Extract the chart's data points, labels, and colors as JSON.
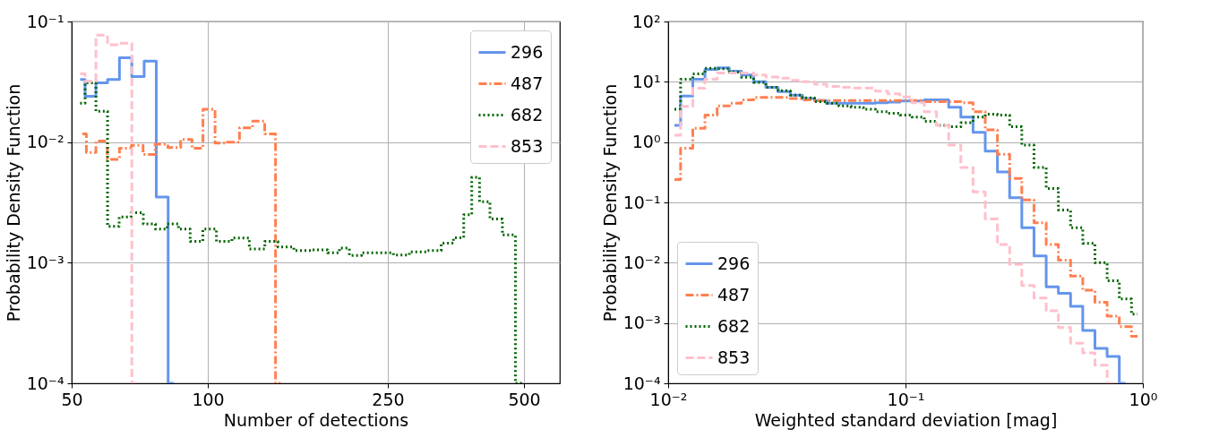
{
  "chart_data": [
    {
      "type": "step",
      "xlabel": "Number of detections",
      "ylabel": "Probability Density Function",
      "log": "xy",
      "grid": true,
      "legend": "top right",
      "xlim": [
        50,
        600
      ],
      "xticks": [
        50,
        100,
        250,
        500
      ],
      "ylim": [
        0.0001,
        0.1
      ],
      "yticks": [
        {
          "value": 0.0001,
          "label": "10⁻⁴"
        },
        {
          "value": 0.001,
          "label": "10⁻³"
        },
        {
          "value": 0.01,
          "label": "10⁻²"
        },
        {
          "value": 0.1,
          "label": "10⁻¹"
        }
      ],
      "series": [
        {
          "name": "296",
          "color": "#6495ed",
          "line_style": "solid",
          "x": [
            52.2,
            54.9,
            58.3,
            61.8,
            65.8,
            70.1,
            74.6,
            79.3,
            84.2
          ],
          "values": [
            0.033,
            0.024,
            0.031,
            0.033,
            0.05,
            0.035,
            0.047,
            0.0035,
            0.0001
          ]
        },
        {
          "name": "487",
          "color": "#ff7f50",
          "line_style": "dashdot",
          "x": [
            52.8,
            55.0,
            58.2,
            61.8,
            65.8,
            69.8,
            74.1,
            78.9,
            84.4,
            89.9,
            94.7,
            100.5,
            107.1,
            113.6,
            121.5,
            129.9,
            137.4,
            145.0
          ],
          "values": [
            0.0117,
            0.0082,
            0.0102,
            0.0072,
            0.0089,
            0.0094,
            0.0079,
            0.0096,
            0.009,
            0.0105,
            0.0089,
            0.0187,
            0.0098,
            0.01,
            0.0131,
            0.0149,
            0.0117,
            0.0001
          ]
        },
        {
          "name": "682",
          "color": "#006400",
          "line_style": "dotted",
          "x": [
            52.2,
            54.9,
            58.3,
            61.8,
            65.6,
            69.8,
            74.3,
            79.0,
            83.7,
            88.6,
            94.3,
            100.8,
            108.3,
            118.0,
            129.3,
            138.2,
            147.7,
            162.6,
            178.1,
            190.3,
            200.7,
            210.5,
            227.2,
            247.6,
            267.2,
            291.2,
            317.3,
            339.2,
            359.3,
            376.7,
            389.9,
            407.8,
            433.6,
            462.9,
            495.0
          ],
          "values": [
            0.021,
            0.031,
            0.018,
            0.002,
            0.0024,
            0.0026,
            0.0021,
            0.0019,
            0.0021,
            0.0019,
            0.0015,
            0.0019,
            0.0015,
            0.0016,
            0.0013,
            0.0015,
            0.00135,
            0.00126,
            0.00128,
            0.00121,
            0.00132,
            0.00115,
            0.00121,
            0.00121,
            0.00116,
            0.00123,
            0.00126,
            0.00145,
            0.00161,
            0.0025,
            0.0051,
            0.0032,
            0.0023,
            0.0017,
            0.0001
          ]
        },
        {
          "name": "853",
          "color": "#ffc0cb",
          "line_style": "dashed",
          "x": [
            52.2,
            54.9,
            58.3,
            61.8,
            65.8,
            70.1
          ],
          "values": [
            0.037,
            0.032,
            0.077,
            0.064,
            0.066,
            0.0001
          ]
        }
      ]
    },
    {
      "type": "step",
      "xlabel": "Weighted standard deviation [mag]",
      "ylabel": "Probability Density Function",
      "log": "xy",
      "grid": true,
      "legend": "bottom left",
      "xlim": [
        0.01,
        1
      ],
      "xticks": [
        {
          "value": 0.01,
          "label": "10⁻²"
        },
        {
          "value": 0.1,
          "label": "10⁻¹"
        },
        {
          "value": 1,
          "label": "10⁰"
        }
      ],
      "ylim": [
        0.0001,
        100
      ],
      "yticks": [
        {
          "value": 0.0001,
          "label": "10⁻⁴"
        },
        {
          "value": 0.001,
          "label": "10⁻³"
        },
        {
          "value": 0.01,
          "label": "10⁻²"
        },
        {
          "value": 0.1,
          "label": "10⁻¹"
        },
        {
          "value": 1,
          "label": "10⁰"
        },
        {
          "value": 10,
          "label": "10¹"
        },
        {
          "value": 100,
          "label": "10²"
        }
      ],
      "series": [
        {
          "name": "296",
          "color": "#6495ed",
          "line_style": "solid",
          "x": [
            0.01063,
            0.01197,
            0.01347,
            0.01516,
            0.01706,
            0.0192,
            0.0216,
            0.0243,
            0.0274,
            0.0308,
            0.0347,
            0.039,
            0.0439,
            0.0494,
            0.0556,
            0.0626,
            0.0705,
            0.0793,
            0.0893,
            0.1005,
            0.1131,
            0.1273,
            0.1433,
            0.1612,
            0.1815,
            0.2043,
            0.2299,
            0.2588,
            0.2913,
            0.3278,
            0.369,
            0.4153,
            0.4674,
            0.5261,
            0.5921,
            0.6664,
            0.75,
            0.8442
          ],
          "values": [
            1.9,
            5.8,
            11,
            16,
            17,
            15,
            13,
            10,
            8.1,
            6.9,
            6.0,
            5.3,
            4.9,
            4.4,
            4.4,
            4.4,
            4.4,
            4.5,
            4.6,
            4.8,
            4.8,
            5.0,
            5.0,
            3.8,
            2.6,
            1.45,
            0.71,
            0.32,
            0.12,
            0.038,
            0.013,
            0.004,
            0.0031,
            0.0019,
            0.00075,
            0.00038,
            0.00028,
            0.0001
          ]
        },
        {
          "name": "487",
          "color": "#ff7f50",
          "line_style": "dashdot",
          "x": [
            0.01063,
            0.01197,
            0.01347,
            0.01516,
            0.01706,
            0.0192,
            0.0216,
            0.0243,
            0.0274,
            0.0308,
            0.0347,
            0.039,
            0.0439,
            0.0494,
            0.0556,
            0.0626,
            0.0705,
            0.0793,
            0.0893,
            0.1005,
            0.1131,
            0.1273,
            0.1433,
            0.1612,
            0.1815,
            0.2043,
            0.2299,
            0.2588,
            0.2913,
            0.3278,
            0.369,
            0.4153,
            0.4674,
            0.5261,
            0.5921,
            0.6664,
            0.75,
            0.8442,
            0.95
          ],
          "values": [
            0.24,
            0.79,
            1.7,
            2.8,
            4.0,
            4.4,
            5.0,
            5.5,
            5.5,
            5.5,
            5.3,
            5.0,
            4.9,
            4.9,
            4.9,
            4.9,
            4.9,
            4.9,
            4.9,
            4.9,
            4.9,
            4.7,
            4.7,
            4.7,
            4.5,
            3.2,
            1.6,
            0.63,
            0.25,
            0.11,
            0.046,
            0.02,
            0.011,
            0.006,
            0.0035,
            0.0022,
            0.0013,
            0.00087,
            0.0006
          ]
        },
        {
          "name": "682",
          "color": "#006400",
          "line_style": "dotted",
          "x": [
            0.01063,
            0.01197,
            0.01347,
            0.01516,
            0.01706,
            0.0192,
            0.0216,
            0.0243,
            0.0274,
            0.0308,
            0.0347,
            0.039,
            0.0439,
            0.0494,
            0.0556,
            0.0626,
            0.0705,
            0.0793,
            0.0893,
            0.1005,
            0.1131,
            0.1273,
            0.1433,
            0.1612,
            0.1815,
            0.2043,
            0.2299,
            0.2588,
            0.2913,
            0.3278,
            0.369,
            0.4153,
            0.4674,
            0.5261,
            0.5921,
            0.6664,
            0.75,
            0.8442,
            0.95
          ],
          "values": [
            3.5,
            11,
            13.5,
            16.8,
            16.5,
            14.5,
            11.9,
            9.8,
            8.1,
            7.1,
            6.0,
            5.4,
            4.7,
            4.4,
            4.0,
            3.8,
            3.5,
            3.2,
            3.0,
            2.8,
            2.6,
            2.2,
            1.9,
            1.8,
            2.1,
            2.6,
            2.9,
            2.8,
            1.8,
            0.89,
            0.38,
            0.17,
            0.075,
            0.038,
            0.021,
            0.01,
            0.005,
            0.0025,
            0.0014
          ]
        },
        {
          "name": "853",
          "color": "#ffc0cb",
          "line_style": "dashed",
          "x": [
            0.01063,
            0.01197,
            0.01347,
            0.01516,
            0.01706,
            0.0192,
            0.0216,
            0.0243,
            0.0274,
            0.0308,
            0.0347,
            0.039,
            0.0439,
            0.0494,
            0.0556,
            0.0626,
            0.0705,
            0.0793,
            0.0893,
            0.1005,
            0.1131,
            0.1273,
            0.1433,
            0.1612,
            0.1815,
            0.2043,
            0.2299,
            0.2588,
            0.2913,
            0.3278,
            0.369,
            0.4153,
            0.4674,
            0.5261,
            0.5921,
            0.6664,
            0.75
          ],
          "values": [
            1.3,
            3.9,
            7.8,
            11,
            14,
            14,
            14,
            13,
            12,
            11.5,
            10.6,
            10,
            9.1,
            8.4,
            8.1,
            7.9,
            7.9,
            7.0,
            6.3,
            5.6,
            4.5,
            3.2,
            1.9,
            0.89,
            0.38,
            0.15,
            0.053,
            0.02,
            0.0094,
            0.0042,
            0.0026,
            0.0016,
            0.00084,
            0.00046,
            0.00032,
            0.0002,
            0.0001
          ]
        }
      ]
    }
  ]
}
